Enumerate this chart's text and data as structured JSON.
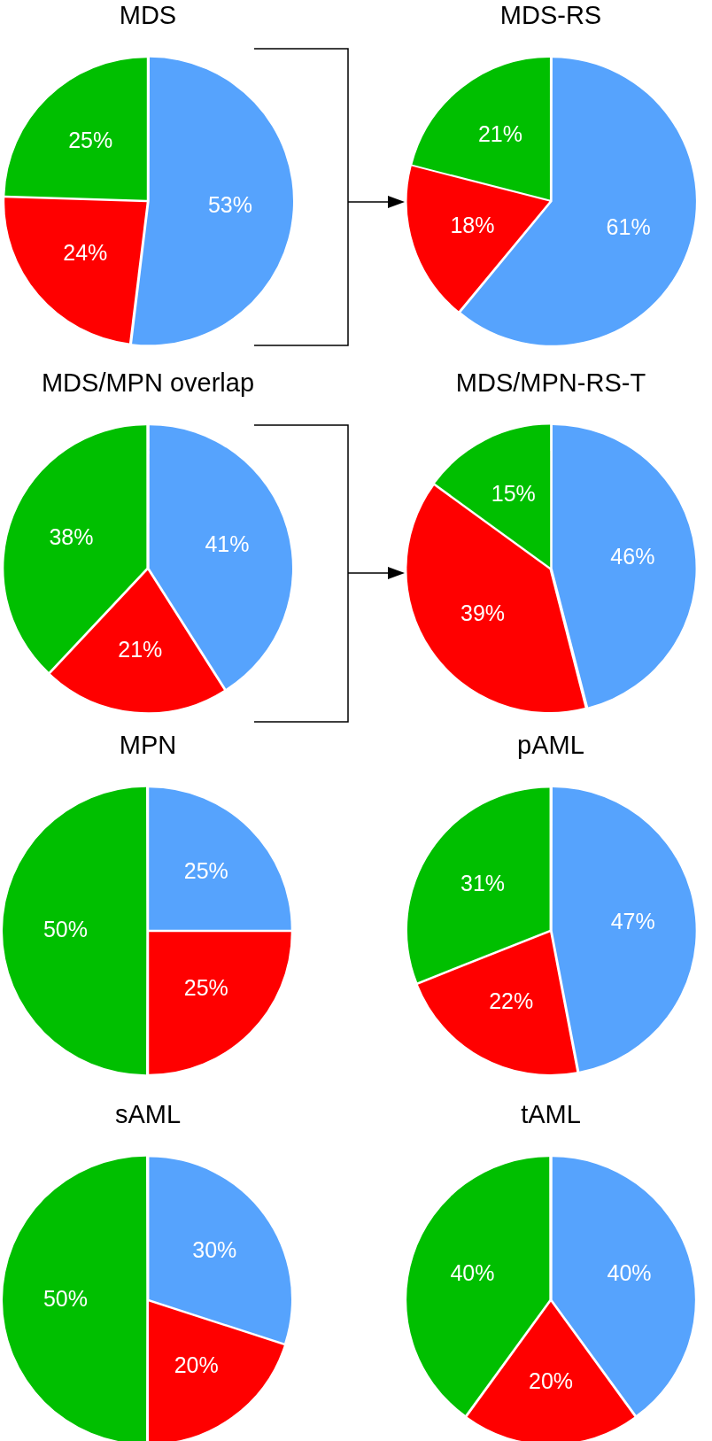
{
  "chart_data": [
    {
      "type": "pie",
      "title": "MDS",
      "categories": [
        null,
        null,
        null
      ],
      "values": [
        53,
        24,
        25
      ],
      "colors": [
        "#56a3fd",
        "#ff0000",
        "#00bf00"
      ],
      "value_labels": [
        "53%",
        "24%",
        "25%"
      ]
    },
    {
      "type": "pie",
      "title": "MDS-RS",
      "categories": [
        null,
        null,
        null
      ],
      "values": [
        61,
        18,
        21
      ],
      "colors": [
        "#56a3fd",
        "#ff0000",
        "#00bf00"
      ],
      "value_labels": [
        "61%",
        "18%",
        "21%"
      ]
    },
    {
      "type": "pie",
      "title": "MDS/MPN overlap",
      "categories": [
        null,
        null,
        null
      ],
      "values": [
        41,
        21,
        38
      ],
      "colors": [
        "#56a3fd",
        "#ff0000",
        "#00bf00"
      ],
      "value_labels": [
        "41%",
        "21%",
        "38%"
      ]
    },
    {
      "type": "pie",
      "title": "MDS/MPN-RS-T",
      "categories": [
        null,
        null,
        null
      ],
      "values": [
        46,
        39,
        15
      ],
      "colors": [
        "#56a3fd",
        "#ff0000",
        "#00bf00"
      ],
      "value_labels": [
        "46%",
        "39%",
        "15%"
      ]
    },
    {
      "type": "pie",
      "title": "MPN",
      "categories": [
        null,
        null,
        null
      ],
      "values": [
        25,
        25,
        50
      ],
      "colors": [
        "#56a3fd",
        "#ff0000",
        "#00bf00"
      ],
      "value_labels": [
        "25%",
        "25%",
        "50%"
      ]
    },
    {
      "type": "pie",
      "title": "pAML",
      "categories": [
        null,
        null,
        null
      ],
      "values": [
        47,
        22,
        31
      ],
      "colors": [
        "#56a3fd",
        "#ff0000",
        "#00bf00"
      ],
      "value_labels": [
        "47%",
        "22%",
        "31%"
      ]
    },
    {
      "type": "pie",
      "title": "sAML",
      "categories": [
        null,
        null,
        null
      ],
      "values": [
        30,
        20,
        50
      ],
      "colors": [
        "#56a3fd",
        "#ff0000",
        "#00bf00"
      ],
      "value_labels": [
        "30%",
        "20%",
        "50%"
      ]
    },
    {
      "type": "pie",
      "title": "tAML",
      "categories": [
        null,
        null,
        null
      ],
      "values": [
        40,
        20,
        40
      ],
      "colors": [
        "#56a3fd",
        "#ff0000",
        "#00bf00"
      ],
      "value_labels": [
        "40%",
        "20%",
        "40%"
      ]
    }
  ]
}
